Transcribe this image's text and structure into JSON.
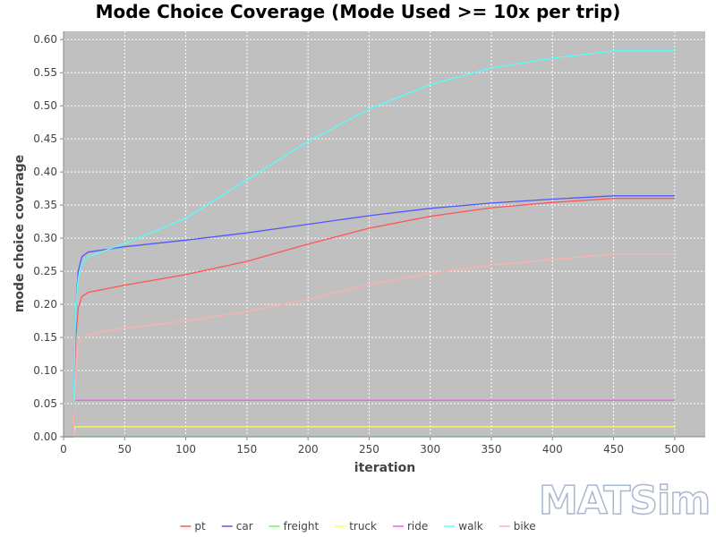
{
  "chart_data": {
    "type": "line",
    "title": "Mode Choice Coverage (Mode Used >= 10x per trip)",
    "xlabel": "iteration",
    "ylabel": "mode choice coverage",
    "xlim": [
      0,
      525
    ],
    "ylim": [
      0,
      0.6125
    ],
    "x_ticks": [
      "0",
      "50",
      "100",
      "150",
      "200",
      "250",
      "300",
      "350",
      "400",
      "450",
      "500"
    ],
    "y_ticks": [
      "0.00",
      "0.05",
      "0.10",
      "0.15",
      "0.20",
      "0.25",
      "0.30",
      "0.35",
      "0.40",
      "0.45",
      "0.50",
      "0.55",
      "0.60"
    ],
    "grid": true,
    "legend_position": "bottom",
    "plot_background": "#c0c0c0",
    "series": [
      {
        "name": "pt",
        "color": "#ff5555",
        "x": [
          0,
          8,
          9,
          10,
          12,
          15,
          20,
          50,
          100,
          150,
          200,
          250,
          300,
          350,
          400,
          450,
          500
        ],
        "y": [
          0,
          0,
          0.1,
          0.15,
          0.195,
          0.212,
          0.218,
          0.229,
          0.245,
          0.265,
          0.291,
          0.315,
          0.333,
          0.346,
          0.354,
          0.36,
          0.36
        ]
      },
      {
        "name": "car",
        "color": "#5555ff",
        "x": [
          0,
          8,
          9,
          10,
          12,
          15,
          20,
          50,
          100,
          150,
          200,
          250,
          300,
          350,
          400,
          450,
          500
        ],
        "y": [
          0,
          0,
          0.12,
          0.2,
          0.25,
          0.272,
          0.279,
          0.287,
          0.297,
          0.308,
          0.321,
          0.334,
          0.345,
          0.353,
          0.359,
          0.364,
          0.364
        ]
      },
      {
        "name": "freight",
        "color": "#55ff55",
        "x": [
          0,
          500
        ],
        "y": [
          0,
          0
        ]
      },
      {
        "name": "truck",
        "color": "#ffff55",
        "x": [
          0,
          8,
          9,
          500
        ],
        "y": [
          0,
          0,
          0.015,
          0.015
        ]
      },
      {
        "name": "ride",
        "color": "#ff55ff",
        "x": [
          0,
          8,
          9,
          500
        ],
        "y": [
          0,
          0,
          0.055,
          0.055
        ]
      },
      {
        "name": "walk",
        "color": "#55ffff",
        "x": [
          0,
          8,
          9,
          10,
          12,
          15,
          20,
          50,
          100,
          150,
          200,
          250,
          300,
          350,
          400,
          450,
          500
        ],
        "y": [
          0,
          0,
          0.12,
          0.2,
          0.24,
          0.262,
          0.272,
          0.292,
          0.33,
          0.388,
          0.446,
          0.495,
          0.532,
          0.557,
          0.572,
          0.583,
          0.583
        ]
      },
      {
        "name": "bike",
        "color": "#ffafaf",
        "x": [
          0,
          8,
          9,
          10,
          12,
          15,
          20,
          50,
          100,
          150,
          200,
          250,
          300,
          350,
          400,
          450,
          500
        ],
        "y": [
          0,
          0,
          0.06,
          0.1,
          0.135,
          0.15,
          0.155,
          0.164,
          0.175,
          0.189,
          0.208,
          0.23,
          0.247,
          0.259,
          0.268,
          0.276,
          0.276
        ]
      }
    ]
  },
  "logo": {
    "text": "MATSim"
  }
}
